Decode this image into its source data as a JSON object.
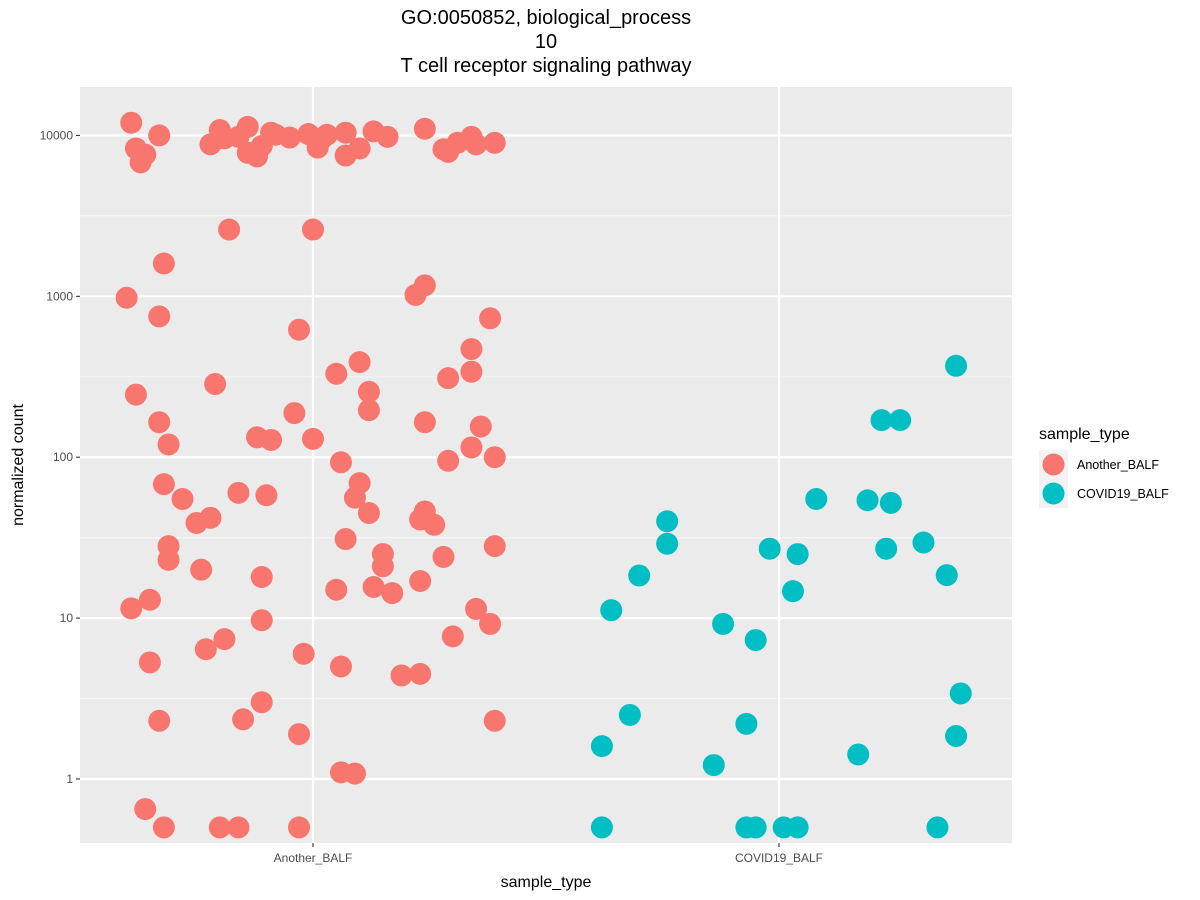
{
  "chart_data": {
    "type": "scatter",
    "title_lines": [
      "GO:0050852, biological_process",
      "10",
      "T cell receptor signaling pathway"
    ],
    "xlabel": "sample_type",
    "ylabel": "normalized count",
    "y_scale": "log10",
    "ylim": [
      0.4,
      20000
    ],
    "y_ticks": [
      {
        "value": 1,
        "label": "1"
      },
      {
        "value": 10,
        "label": "10"
      },
      {
        "value": 100,
        "label": "100"
      },
      {
        "value": 1000,
        "label": "1000"
      },
      {
        "value": 10000,
        "label": "10000"
      }
    ],
    "categories": [
      "Another_BALF",
      "COVID19_BALF"
    ],
    "grid": true,
    "legend": {
      "title": "sample_type",
      "position": "right"
    },
    "colors": {
      "panel_bg": "#ebebeb",
      "grid_major": "#ffffff",
      "grid_minor": "#f5f5f5",
      "Another_BALF": "#f8766d",
      "COVID19_BALF": "#00bfc4"
    },
    "series": [
      {
        "name": "Another_BALF",
        "color": "#f8766d",
        "points": [
          [
            -0.39,
            12000
          ],
          [
            -0.38,
            8300
          ],
          [
            -0.37,
            6800
          ],
          [
            -0.36,
            7600
          ],
          [
            -0.33,
            10000
          ],
          [
            -0.22,
            8800
          ],
          [
            -0.2,
            10800
          ],
          [
            -0.19,
            9600
          ],
          [
            -0.16,
            9800
          ],
          [
            -0.14,
            11300
          ],
          [
            -0.14,
            7800
          ],
          [
            -0.12,
            7400
          ],
          [
            -0.11,
            8600
          ],
          [
            -0.09,
            10400
          ],
          [
            -0.08,
            10100
          ],
          [
            -0.05,
            9700
          ],
          [
            -0.01,
            10200
          ],
          [
            0.01,
            8400
          ],
          [
            0.02,
            9600
          ],
          [
            0.03,
            10100
          ],
          [
            0.07,
            7500
          ],
          [
            0.07,
            10400
          ],
          [
            0.1,
            8300
          ],
          [
            0.13,
            10600
          ],
          [
            0.16,
            9800
          ],
          [
            0.24,
            11000
          ],
          [
            0.28,
            8200
          ],
          [
            0.29,
            7900
          ],
          [
            0.31,
            9000
          ],
          [
            0.34,
            9800
          ],
          [
            0.35,
            8800
          ],
          [
            0.39,
            9000
          ],
          [
            -0.18,
            2600
          ],
          [
            0.0,
            2600
          ],
          [
            -0.32,
            1600
          ],
          [
            -0.4,
            980
          ],
          [
            -0.33,
            750
          ],
          [
            0.22,
            1020
          ],
          [
            0.24,
            1170
          ],
          [
            0.38,
            730
          ],
          [
            -0.03,
            620
          ],
          [
            0.34,
            470
          ],
          [
            0.05,
            330
          ],
          [
            0.1,
            390
          ],
          [
            0.29,
            310
          ],
          [
            0.34,
            340
          ],
          [
            -0.38,
            245
          ],
          [
            -0.21,
            285
          ],
          [
            0.12,
            255
          ],
          [
            0.12,
            196
          ],
          [
            -0.33,
            165
          ],
          [
            -0.31,
            120
          ],
          [
            -0.12,
            133
          ],
          [
            -0.04,
            188
          ],
          [
            -0.09,
            128
          ],
          [
            0.0,
            130
          ],
          [
            0.24,
            165
          ],
          [
            0.36,
            155
          ],
          [
            0.34,
            115
          ],
          [
            0.29,
            95
          ],
          [
            0.39,
            100
          ],
          [
            0.06,
            93
          ],
          [
            -0.32,
            68
          ],
          [
            -0.28,
            55
          ],
          [
            -0.22,
            42
          ],
          [
            -0.25,
            39
          ],
          [
            -0.16,
            60
          ],
          [
            -0.1,
            58
          ],
          [
            0.1,
            69
          ],
          [
            0.09,
            56
          ],
          [
            0.12,
            45
          ],
          [
            0.24,
            46
          ],
          [
            0.23,
            41
          ],
          [
            0.26,
            38
          ],
          [
            0.28,
            24
          ],
          [
            0.39,
            28
          ],
          [
            -0.31,
            28
          ],
          [
            -0.31,
            23
          ],
          [
            -0.24,
            20
          ],
          [
            -0.11,
            18
          ],
          [
            0.07,
            31
          ],
          [
            0.15,
            25
          ],
          [
            0.15,
            21
          ],
          [
            0.05,
            15
          ],
          [
            0.13,
            15.6
          ],
          [
            0.17,
            14.3
          ],
          [
            0.23,
            17
          ],
          [
            -0.39,
            11.5
          ],
          [
            -0.35,
            13
          ],
          [
            -0.11,
            9.7
          ],
          [
            0.35,
            11.4
          ],
          [
            0.38,
            9.2
          ],
          [
            -0.35,
            5.3
          ],
          [
            -0.23,
            6.4
          ],
          [
            -0.19,
            7.4
          ],
          [
            -0.02,
            6.0
          ],
          [
            0.06,
            5.0
          ],
          [
            0.19,
            4.4
          ],
          [
            0.23,
            4.5
          ],
          [
            0.3,
            7.7
          ],
          [
            -0.33,
            2.3
          ],
          [
            -0.15,
            2.35
          ],
          [
            -0.11,
            3.0
          ],
          [
            -0.03,
            1.9
          ],
          [
            0.39,
            2.3
          ],
          [
            0.06,
            1.1
          ],
          [
            0.09,
            1.08
          ],
          [
            -0.36,
            0.65
          ],
          [
            -0.32,
            0.5
          ],
          [
            -0.2,
            0.5
          ],
          [
            -0.16,
            0.5
          ],
          [
            -0.03,
            0.5
          ]
        ]
      },
      {
        "name": "COVID19_BALF",
        "color": "#00bfc4",
        "points": [
          [
            -0.38,
            1.6
          ],
          [
            -0.38,
            0.5
          ],
          [
            -0.36,
            11.2
          ],
          [
            -0.32,
            2.5
          ],
          [
            -0.3,
            18.4
          ],
          [
            -0.24,
            40
          ],
          [
            -0.24,
            29
          ],
          [
            -0.14,
            1.22
          ],
          [
            -0.12,
            9.2
          ],
          [
            -0.07,
            2.2
          ],
          [
            -0.07,
            0.5
          ],
          [
            -0.05,
            7.3
          ],
          [
            -0.05,
            0.5
          ],
          [
            -0.02,
            27
          ],
          [
            0.01,
            0.5
          ],
          [
            0.03,
            14.7
          ],
          [
            0.04,
            25
          ],
          [
            0.04,
            0.5
          ],
          [
            0.08,
            55
          ],
          [
            0.17,
            1.42
          ],
          [
            0.19,
            54
          ],
          [
            0.22,
            170
          ],
          [
            0.23,
            27
          ],
          [
            0.24,
            52
          ],
          [
            0.26,
            170
          ],
          [
            0.31,
            29.5
          ],
          [
            0.34,
            0.5
          ],
          [
            0.36,
            18.5
          ],
          [
            0.38,
            370
          ],
          [
            0.38,
            1.85
          ],
          [
            0.39,
            3.4
          ]
        ]
      }
    ]
  }
}
